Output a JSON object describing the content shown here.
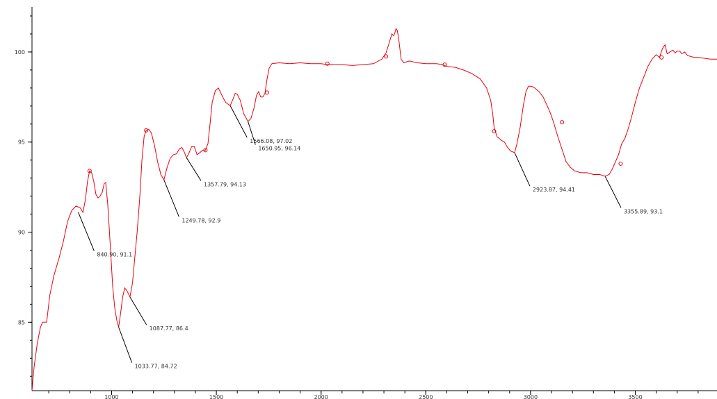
{
  "chart_data": {
    "type": "line",
    "title": "",
    "xlabel": "",
    "ylabel": "",
    "xlim": [
      620,
      3890
    ],
    "ylim": [
      81.2,
      102.5
    ],
    "grid": false,
    "x_ticks": [
      1000,
      1500,
      2000,
      2500,
      3000,
      3500
    ],
    "x_tick_labels": [
      "1000",
      "1500",
      "2000",
      "2500",
      "3000",
      "3500"
    ],
    "y_ticks": [
      85,
      90,
      95,
      100
    ],
    "y_tick_labels": [
      "85",
      "90",
      "95",
      "100"
    ],
    "series": [
      {
        "color": "#e8000b",
        "points": [
          [
            620,
            81.2
          ],
          [
            630,
            82.5
          ],
          [
            645,
            83.8
          ],
          [
            660,
            84.7
          ],
          [
            670,
            85.0
          ],
          [
            690,
            85.0
          ],
          [
            705,
            86.5
          ],
          [
            725,
            87.6
          ],
          [
            750,
            88.6
          ],
          [
            770,
            89.5
          ],
          [
            790,
            90.6
          ],
          [
            810,
            91.2
          ],
          [
            830,
            91.45
          ],
          [
            850,
            91.35
          ],
          [
            863,
            91.1
          ],
          [
            875,
            91.8
          ],
          [
            885,
            92.8
          ],
          [
            895,
            93.4
          ],
          [
            905,
            93.3
          ],
          [
            915,
            92.8
          ],
          [
            925,
            92.1
          ],
          [
            935,
            91.9
          ],
          [
            945,
            92.0
          ],
          [
            955,
            92.2
          ],
          [
            965,
            92.7
          ],
          [
            972,
            92.75
          ],
          [
            982,
            91.5
          ],
          [
            995,
            89.0
          ],
          [
            1005,
            87.0
          ],
          [
            1015,
            85.8
          ],
          [
            1025,
            85.1
          ],
          [
            1033.77,
            84.72
          ],
          [
            1043,
            85.5
          ],
          [
            1053,
            86.4
          ],
          [
            1063,
            86.9
          ],
          [
            1075,
            86.7
          ],
          [
            1087.77,
            86.4
          ],
          [
            1100,
            87.2
          ],
          [
            1110,
            88.5
          ],
          [
            1122,
            90.0
          ],
          [
            1135,
            92.0
          ],
          [
            1145,
            94.0
          ],
          [
            1155,
            95.3
          ],
          [
            1165,
            95.65
          ],
          [
            1178,
            95.7
          ],
          [
            1190,
            95.5
          ],
          [
            1205,
            94.8
          ],
          [
            1220,
            93.9
          ],
          [
            1235,
            93.2
          ],
          [
            1249.78,
            92.9
          ],
          [
            1265,
            93.6
          ],
          [
            1280,
            94.1
          ],
          [
            1295,
            94.3
          ],
          [
            1310,
            94.35
          ],
          [
            1322,
            94.6
          ],
          [
            1335,
            94.7
          ],
          [
            1345,
            94.5
          ],
          [
            1357.79,
            94.13
          ],
          [
            1370,
            94.4
          ],
          [
            1382,
            94.75
          ],
          [
            1395,
            94.75
          ],
          [
            1408,
            94.3
          ],
          [
            1420,
            94.4
          ],
          [
            1435,
            94.55
          ],
          [
            1448,
            94.55
          ],
          [
            1460,
            94.9
          ],
          [
            1470,
            96.0
          ],
          [
            1480,
            97.2
          ],
          [
            1495,
            97.85
          ],
          [
            1510,
            98.0
          ],
          [
            1522,
            97.7
          ],
          [
            1535,
            97.4
          ],
          [
            1545,
            97.2
          ],
          [
            1566.08,
            97.02
          ],
          [
            1580,
            97.4
          ],
          [
            1590,
            97.7
          ],
          [
            1600,
            97.65
          ],
          [
            1615,
            97.3
          ],
          [
            1630,
            96.6
          ],
          [
            1650.95,
            96.14
          ],
          [
            1665,
            96.3
          ],
          [
            1680,
            96.9
          ],
          [
            1692,
            97.6
          ],
          [
            1702,
            97.8
          ],
          [
            1712,
            97.5
          ],
          [
            1722,
            97.5
          ],
          [
            1732,
            97.7
          ],
          [
            1742,
            98.5
          ],
          [
            1752,
            99.1
          ],
          [
            1765,
            99.35
          ],
          [
            1800,
            99.4
          ],
          [
            1850,
            99.35
          ],
          [
            1900,
            99.4
          ],
          [
            1950,
            99.35
          ],
          [
            2000,
            99.35
          ],
          [
            2030,
            99.3
          ],
          [
            2100,
            99.3
          ],
          [
            2150,
            99.25
          ],
          [
            2200,
            99.3
          ],
          [
            2250,
            99.35
          ],
          [
            2290,
            99.6
          ],
          [
            2310,
            99.95
          ],
          [
            2325,
            100.5
          ],
          [
            2338,
            101.0
          ],
          [
            2346,
            100.9
          ],
          [
            2352,
            101.05
          ],
          [
            2358,
            101.3
          ],
          [
            2364,
            101.2
          ],
          [
            2372,
            100.6
          ],
          [
            2382,
            99.6
          ],
          [
            2395,
            99.4
          ],
          [
            2420,
            99.5
          ],
          [
            2460,
            99.4
          ],
          [
            2500,
            99.35
          ],
          [
            2550,
            99.35
          ],
          [
            2580,
            99.3
          ],
          [
            2600,
            99.2
          ],
          [
            2640,
            99.15
          ],
          [
            2680,
            99.0
          ],
          [
            2720,
            98.8
          ],
          [
            2760,
            98.5
          ],
          [
            2790,
            98.0
          ],
          [
            2810,
            97.3
          ],
          [
            2820,
            96.5
          ],
          [
            2826,
            95.8
          ],
          [
            2840,
            95.3
          ],
          [
            2860,
            95.1
          ],
          [
            2875,
            95.0
          ],
          [
            2890,
            94.7
          ],
          [
            2905,
            94.5
          ],
          [
            2923.87,
            94.41
          ],
          [
            2935,
            94.9
          ],
          [
            2950,
            95.8
          ],
          [
            2965,
            97.0
          ],
          [
            2978,
            97.8
          ],
          [
            2990,
            98.1
          ],
          [
            3005,
            98.1
          ],
          [
            3020,
            98.0
          ],
          [
            3040,
            97.8
          ],
          [
            3060,
            97.5
          ],
          [
            3080,
            97.0
          ],
          [
            3095,
            96.6
          ],
          [
            3110,
            96.1
          ],
          [
            3130,
            95.3
          ],
          [
            3150,
            94.6
          ],
          [
            3170,
            93.9
          ],
          [
            3190,
            93.6
          ],
          [
            3210,
            93.4
          ],
          [
            3240,
            93.3
          ],
          [
            3270,
            93.3
          ],
          [
            3300,
            93.2
          ],
          [
            3330,
            93.2
          ],
          [
            3355.89,
            93.1
          ],
          [
            3375,
            93.2
          ],
          [
            3390,
            93.5
          ],
          [
            3405,
            93.9
          ],
          [
            3420,
            94.3
          ],
          [
            3435,
            94.9
          ],
          [
            3450,
            95.2
          ],
          [
            3465,
            95.7
          ],
          [
            3480,
            96.3
          ],
          [
            3500,
            97.2
          ],
          [
            3520,
            98.0
          ],
          [
            3540,
            98.6
          ],
          [
            3560,
            99.2
          ],
          [
            3580,
            99.6
          ],
          [
            3600,
            99.85
          ],
          [
            3615,
            99.7
          ],
          [
            3630,
            100.2
          ],
          [
            3642,
            100.4
          ],
          [
            3652,
            99.9
          ],
          [
            3665,
            100.0
          ],
          [
            3680,
            100.1
          ],
          [
            3690,
            99.95
          ],
          [
            3700,
            100.05
          ],
          [
            3712,
            100.05
          ],
          [
            3722,
            99.9
          ],
          [
            3735,
            100.0
          ],
          [
            3750,
            99.8
          ],
          [
            3765,
            99.75
          ],
          [
            3780,
            99.7
          ],
          [
            3800,
            99.7
          ],
          [
            3830,
            99.65
          ],
          [
            3860,
            99.6
          ],
          [
            3890,
            99.6
          ]
        ]
      }
    ],
    "peak_markers": [
      [
        895,
        93.4
      ],
      [
        1165,
        95.65
      ],
      [
        1448,
        94.55
      ],
      [
        1742,
        97.75
      ],
      [
        2030,
        99.35
      ],
      [
        2310,
        99.75
      ],
      [
        2590,
        99.3
      ],
      [
        2826,
        95.6
      ],
      [
        3150,
        96.1
      ],
      [
        3430,
        93.8
      ],
      [
        3625,
        99.7
      ]
    ],
    "annotations": [
      {
        "x": 840.9,
        "y": 91.1,
        "text": "840.90, 91.1",
        "lx": 930,
        "ly": 88.8
      },
      {
        "x": 1033.77,
        "y": 84.72,
        "text": "1033.77, 84.72",
        "lx": 1110,
        "ly": 82.6
      },
      {
        "x": 1087.77,
        "y": 86.4,
        "text": "1087.77, 86.4",
        "lx": 1180,
        "ly": 84.7
      },
      {
        "x": 1249.78,
        "y": 92.9,
        "text": "1249.78, 92.9",
        "lx": 1335,
        "ly": 90.7
      },
      {
        "x": 1357.79,
        "y": 94.13,
        "text": "1357.79, 94.13",
        "lx": 1440,
        "ly": 92.7
      },
      {
        "x": 1566.08,
        "y": 97.02,
        "text": "1566.08, 97.02",
        "lx": 1660,
        "ly": 95.1
      },
      {
        "x": 1650.95,
        "y": 96.14,
        "text": "1650.95, 96.14",
        "lx": 1700,
        "ly": 94.7
      },
      {
        "x": 2923.87,
        "y": 94.41,
        "text": "2923.87, 94.41",
        "lx": 3010,
        "ly": 92.4
      },
      {
        "x": 3355.89,
        "y": 93.1,
        "text": "3355.89, 93.1",
        "lx": 3445,
        "ly": 91.2
      }
    ]
  }
}
